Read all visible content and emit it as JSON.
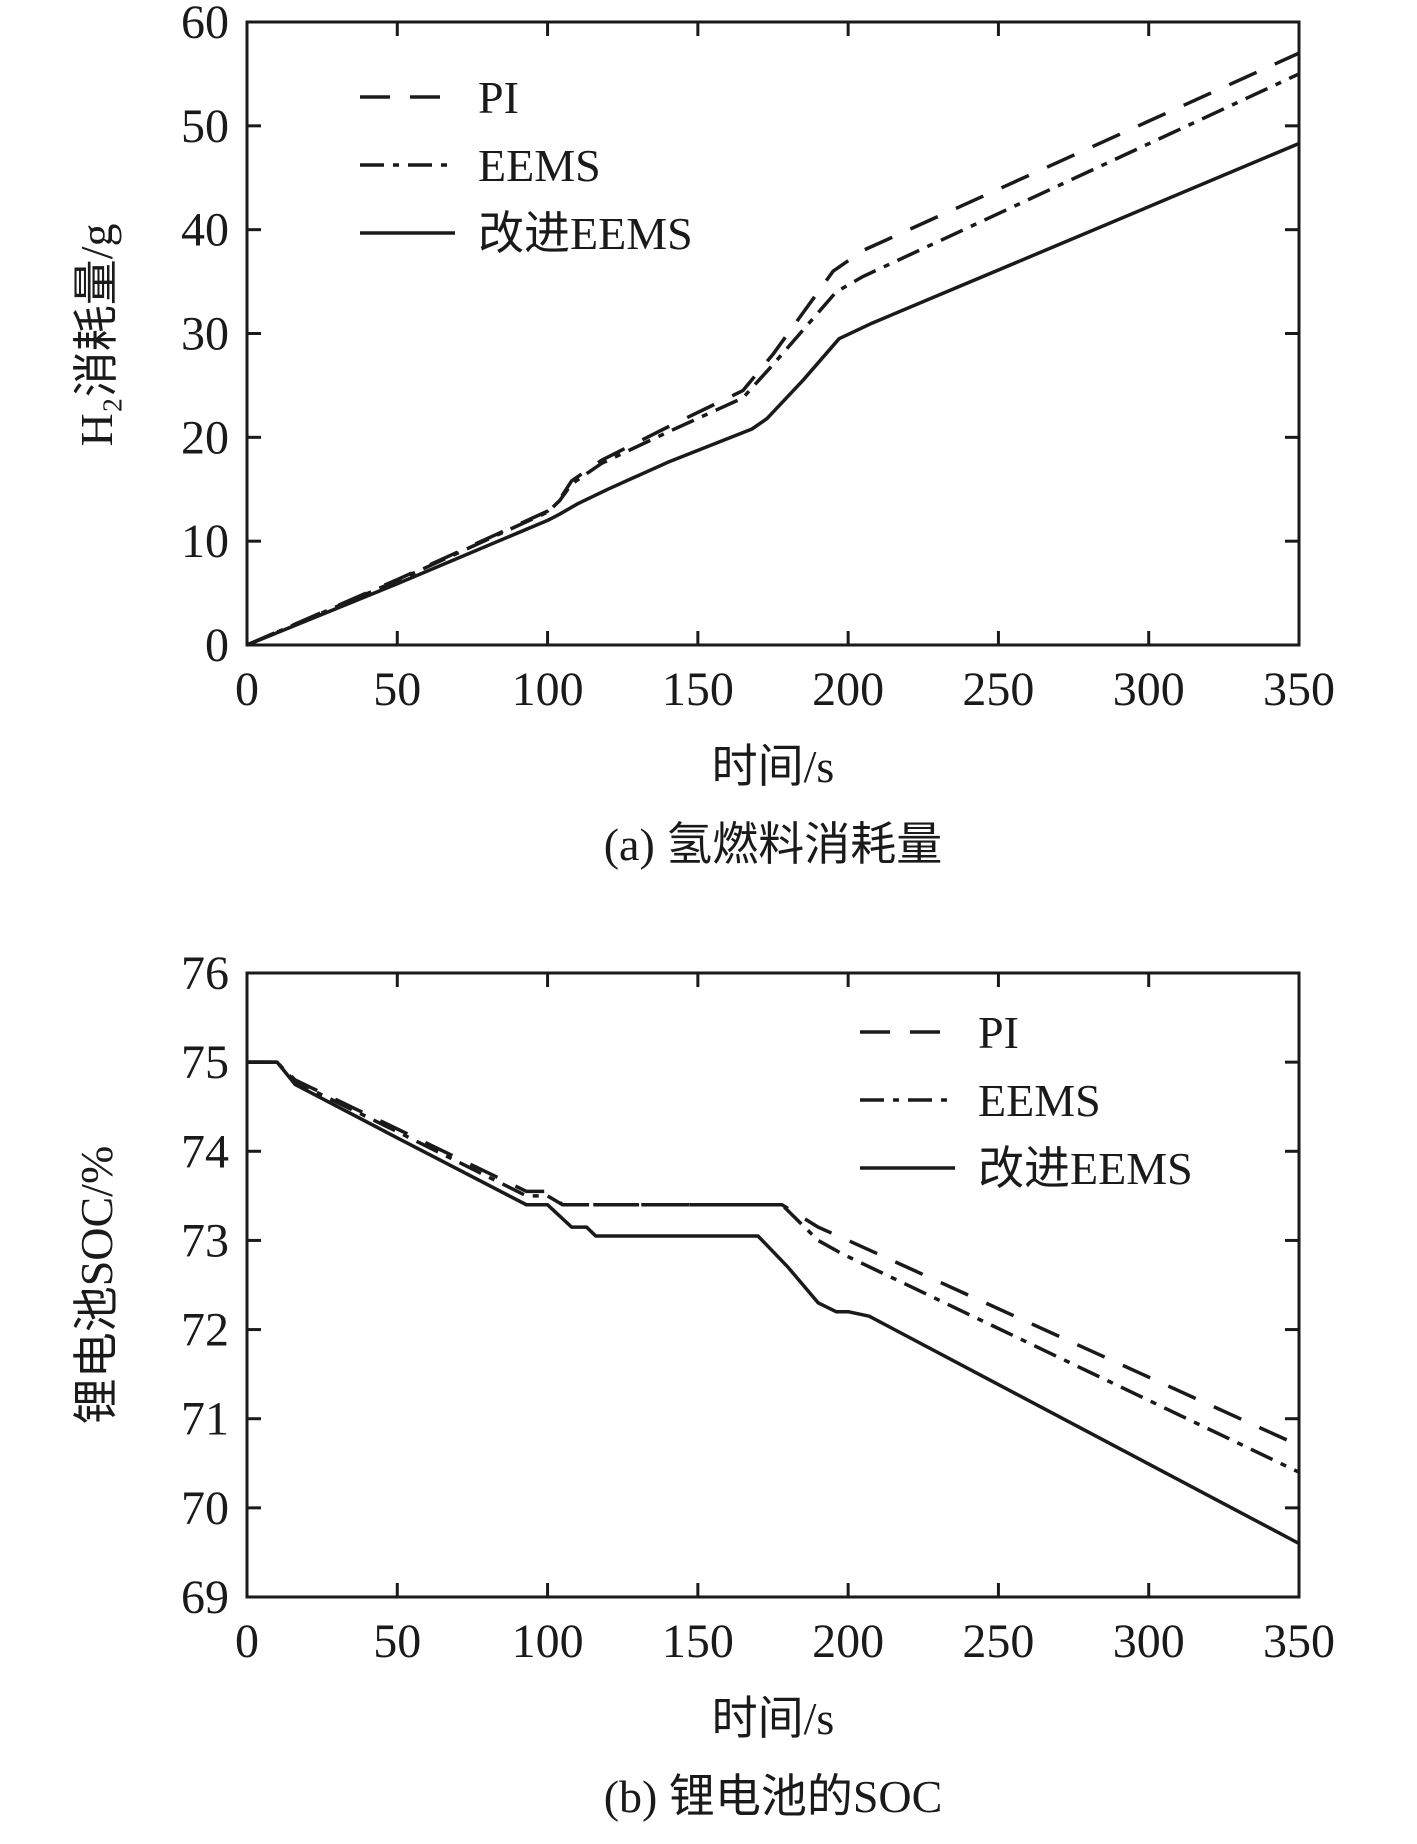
{
  "chart_data": [
    {
      "id": "a",
      "type": "line",
      "caption": "(a) 氢燃料消耗量",
      "xlabel": "时间/s",
      "ylabel": "H₂消耗量/g",
      "xlim": [
        0,
        350
      ],
      "ylim": [
        0,
        60
      ],
      "xticks": [
        0,
        50,
        100,
        150,
        200,
        250,
        300,
        350
      ],
      "yticks": [
        0,
        10,
        20,
        30,
        40,
        50,
        60
      ],
      "grid": false,
      "legend_position": "top-left",
      "series": [
        {
          "name": "PI",
          "style": "dashed",
          "color": "#1a1a1a",
          "points": [
            [
              0,
              0
            ],
            [
              50,
              6.3
            ],
            [
              100,
              12.9
            ],
            [
              104,
              14.0
            ],
            [
              108,
              15.8
            ],
            [
              118,
              17.8
            ],
            [
              140,
              21.0
            ],
            [
              165,
              24.5
            ],
            [
              175,
              28.0
            ],
            [
              195,
              36.0
            ],
            [
              205,
              38.0
            ],
            [
              350,
              57.0
            ]
          ]
        },
        {
          "name": "EEMS",
          "style": "dash-dot",
          "color": "#1a1a1a",
          "points": [
            [
              0,
              0
            ],
            [
              50,
              6.2
            ],
            [
              100,
              12.8
            ],
            [
              104,
              13.9
            ],
            [
              108,
              15.5
            ],
            [
              118,
              17.5
            ],
            [
              140,
              20.5
            ],
            [
              165,
              23.8
            ],
            [
              175,
              27.0
            ],
            [
              196,
              34.0
            ],
            [
              205,
              35.5
            ],
            [
              350,
              55.0
            ]
          ]
        },
        {
          "name": "改进EEMS",
          "style": "solid",
          "color": "#1a1a1a",
          "points": [
            [
              0,
              0
            ],
            [
              50,
              5.9
            ],
            [
              100,
              12.0
            ],
            [
              104,
              12.6
            ],
            [
              110,
              13.6
            ],
            [
              120,
              15.0
            ],
            [
              140,
              17.6
            ],
            [
              168,
              20.8
            ],
            [
              173,
              21.8
            ],
            [
              185,
              25.5
            ],
            [
              197,
              29.5
            ],
            [
              208,
              31.0
            ],
            [
              350,
              48.3
            ]
          ]
        }
      ]
    },
    {
      "id": "b",
      "type": "line",
      "caption": "(b) 锂电池的SOC",
      "xlabel": "时间/s",
      "ylabel": "锂电池SOC/%",
      "xlim": [
        0,
        350
      ],
      "ylim": [
        69,
        76
      ],
      "xticks": [
        0,
        50,
        100,
        150,
        200,
        250,
        300,
        350
      ],
      "yticks": [
        69,
        70,
        71,
        72,
        73,
        74,
        75,
        76
      ],
      "grid": false,
      "legend_position": "top-right",
      "series": [
        {
          "name": "PI",
          "style": "dashed",
          "color": "#1a1a1a",
          "points": [
            [
              0,
              75.0
            ],
            [
              10,
              75.0
            ],
            [
              16,
              74.8
            ],
            [
              50,
              74.25
            ],
            [
              93,
              73.55
            ],
            [
              100,
              73.55
            ],
            [
              105,
              73.4
            ],
            [
              178,
              73.4
            ],
            [
              190,
              73.15
            ],
            [
              200,
              73.0
            ],
            [
              350,
              70.7
            ]
          ]
        },
        {
          "name": "EEMS",
          "style": "dash-dot",
          "color": "#1a1a1a",
          "points": [
            [
              0,
              75.0
            ],
            [
              10,
              75.0
            ],
            [
              16,
              74.78
            ],
            [
              50,
              74.22
            ],
            [
              93,
              73.5
            ],
            [
              100,
              73.5
            ],
            [
              105,
              73.4
            ],
            [
              178,
              73.4
            ],
            [
              190,
              73.0
            ],
            [
              198,
              72.85
            ],
            [
              350,
              70.4
            ]
          ]
        },
        {
          "name": "改进EEMS",
          "style": "solid",
          "color": "#1a1a1a",
          "points": [
            [
              0,
              75.0
            ],
            [
              10,
              75.0
            ],
            [
              16,
              74.75
            ],
            [
              50,
              74.15
            ],
            [
              93,
              73.4
            ],
            [
              100,
              73.4
            ],
            [
              108,
              73.15
            ],
            [
              113,
              73.15
            ],
            [
              116,
              73.05
            ],
            [
              170,
              73.05
            ],
            [
              180,
              72.7
            ],
            [
              190,
              72.3
            ],
            [
              196,
              72.2
            ],
            [
              200,
              72.2
            ],
            [
              207,
              72.15
            ],
            [
              350,
              69.6
            ]
          ]
        }
      ]
    }
  ]
}
